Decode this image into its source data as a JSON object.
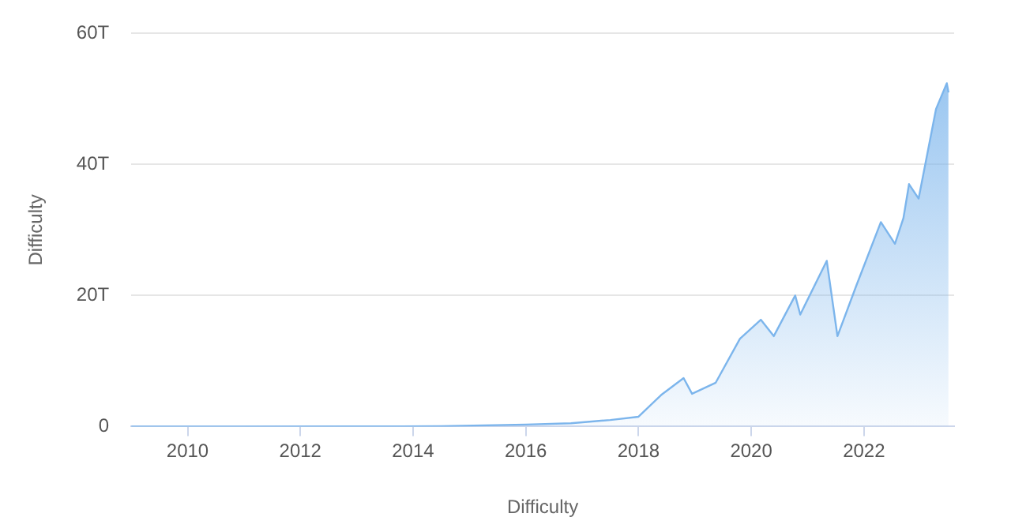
{
  "chart_data": {
    "type": "area",
    "xlabel": "Difficulty",
    "ylabel": "Difficulty",
    "x": [
      2009.0,
      2011.0,
      2013.0,
      2014.5,
      2016.0,
      2016.8,
      2017.5,
      2018.0,
      2018.4,
      2018.8,
      2018.95,
      2019.37,
      2019.8,
      2020.17,
      2020.4,
      2020.78,
      2020.87,
      2021.34,
      2021.53,
      2021.86,
      2022.3,
      2022.55,
      2022.7,
      2022.8,
      2022.97,
      2023.28,
      2023.47,
      2023.5
    ],
    "series": [
      {
        "color": "#7cb5ec",
        "values": [
          0,
          0,
          0.02,
          0.05,
          0.3,
          0.5,
          1,
          1.5,
          4.8,
          7.4,
          5,
          6.7,
          13.4,
          16.3,
          13.8,
          20,
          17.1,
          25.3,
          13.8,
          21.4,
          31.2,
          27.9,
          31.8,
          37,
          34.8,
          48.5,
          52.4,
          51
        ]
      }
    ],
    "xlim": [
      2009,
      2023.6
    ],
    "xticks": [
      2010,
      2012,
      2014,
      2016,
      2018,
      2020,
      2022
    ],
    "ylim": [
      0,
      60
    ],
    "yticks": [
      0,
      {
        "value": 20,
        "label": "20T"
      },
      {
        "value": 40,
        "label": "40T"
      },
      {
        "value": 60,
        "label": "60T"
      }
    ],
    "grid": "y"
  }
}
